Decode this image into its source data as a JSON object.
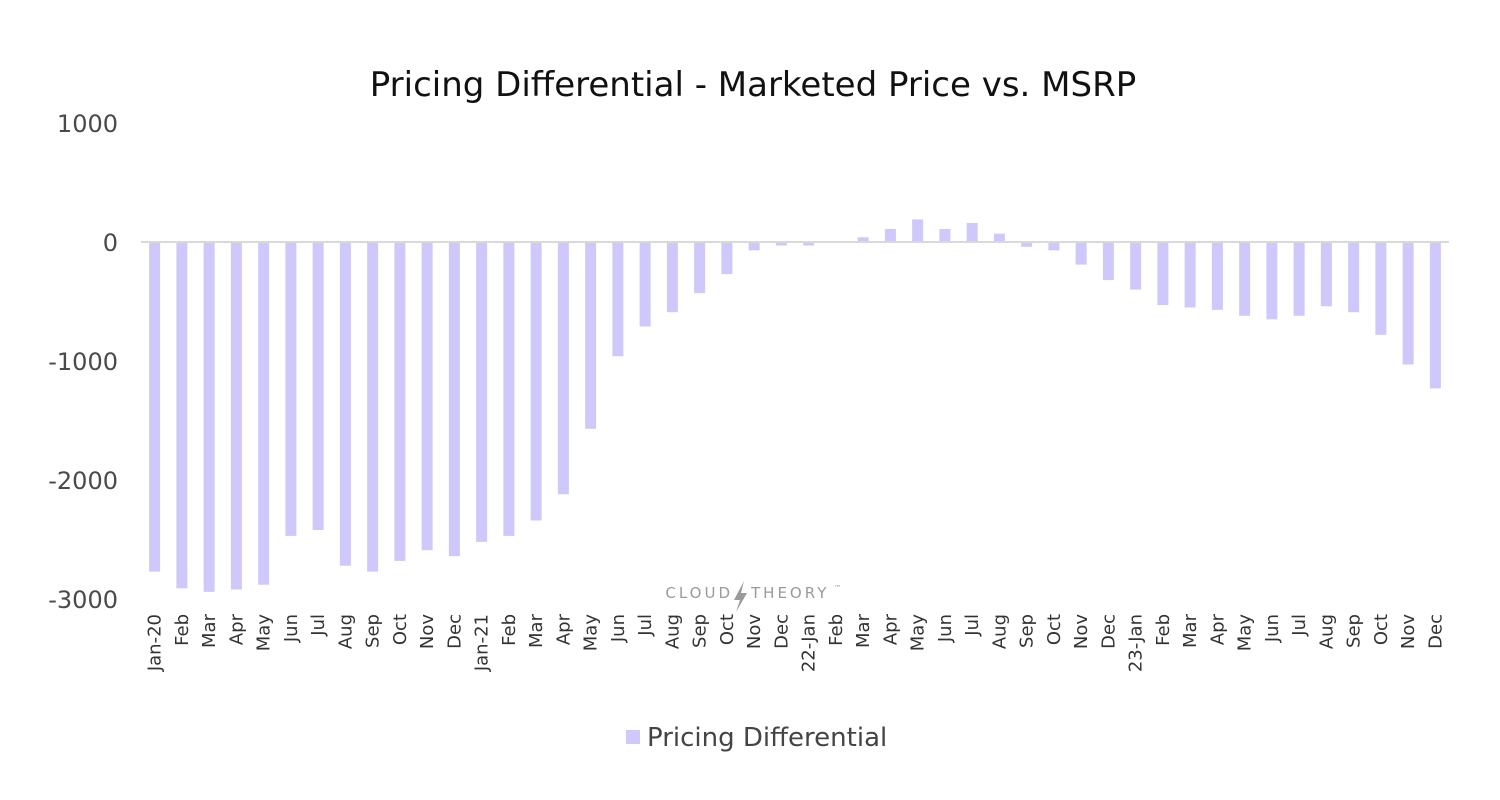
{
  "colors": {
    "bar": "#cfc8fb",
    "zero_line": "#d9d9d9",
    "title": "#111111",
    "tick": "#4a4a4a"
  },
  "watermark": {
    "left": "CLOUD",
    "right": "THEORY",
    "tm": "™",
    "icon": "lightning-bolt-icon"
  },
  "chart_data": {
    "type": "bar",
    "title": "Pricing Differential - Marketed Price vs. MSRP",
    "xlabel": "",
    "ylabel": "",
    "ylim": [
      -3000,
      1000
    ],
    "yticks": [
      1000,
      0,
      -1000,
      -2000,
      -3000
    ],
    "ytick_labels": [
      "1000",
      "0",
      "-1000",
      "-2000",
      "-3000"
    ],
    "grid": false,
    "legend_position": "bottom-center",
    "categories": [
      "Jan-20",
      "Feb",
      "Mar",
      "Apr",
      "May",
      "Jun",
      "Jul",
      "Aug",
      "Sep",
      "Oct",
      "Nov",
      "Dec",
      "Jan-21",
      "Feb",
      "Mar",
      "Apr",
      "May",
      "Jun",
      "Jul",
      "Aug",
      "Sep",
      "Oct",
      "Nov",
      "Dec",
      "22-Jan",
      "Feb",
      "Mar",
      "Apr",
      "May",
      "Jun",
      "Jul",
      "Aug",
      "Sep",
      "Oct",
      "Nov",
      "Dec",
      "23-Jan",
      "Feb",
      "Mar",
      "Apr",
      "May",
      "Jun",
      "Jul",
      "Aug",
      "Sep",
      "Oct",
      "Nov",
      "Dec"
    ],
    "series": [
      {
        "name": "Pricing Differential",
        "values": [
          -2770,
          -2910,
          -2940,
          -2920,
          -2880,
          -2470,
          -2420,
          -2720,
          -2770,
          -2680,
          -2590,
          -2640,
          -2520,
          -2470,
          -2340,
          -2120,
          -1570,
          -960,
          -710,
          -590,
          -430,
          -270,
          -70,
          -30,
          -30,
          0,
          40,
          110,
          190,
          110,
          160,
          70,
          -40,
          -70,
          -190,
          -320,
          -400,
          -530,
          -550,
          -570,
          -620,
          -650,
          -620,
          -540,
          -590,
          -780,
          -1030,
          -1230
        ]
      }
    ]
  }
}
